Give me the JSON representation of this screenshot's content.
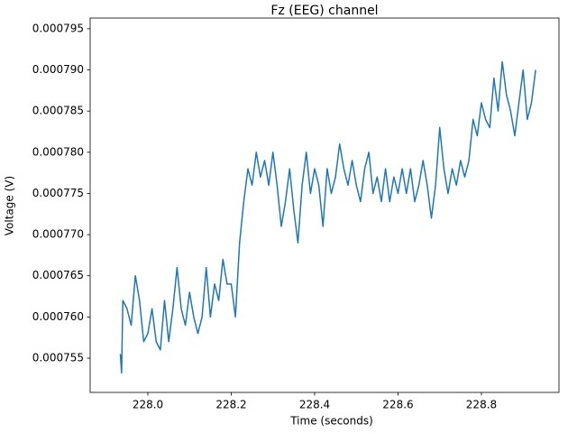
{
  "chart_data": {
    "type": "line",
    "title": "Fz (EEG) channel",
    "x_label": "Time (seconds)",
    "y_label": "Voltage (V)",
    "x": [
      227.934,
      227.937,
      227.94,
      227.95,
      227.96,
      227.97,
      227.98,
      227.99,
      228.0,
      228.01,
      228.02,
      228.03,
      228.04,
      228.05,
      228.06,
      228.07,
      228.08,
      228.09,
      228.1,
      228.11,
      228.12,
      228.13,
      228.14,
      228.15,
      228.16,
      228.17,
      228.18,
      228.19,
      228.2,
      228.21,
      228.22,
      228.23,
      228.24,
      228.25,
      228.26,
      228.27,
      228.28,
      228.29,
      228.3,
      228.31,
      228.32,
      228.33,
      228.34,
      228.35,
      228.36,
      228.37,
      228.38,
      228.39,
      228.4,
      228.41,
      228.42,
      228.43,
      228.44,
      228.45,
      228.46,
      228.47,
      228.48,
      228.49,
      228.5,
      228.51,
      228.52,
      228.53,
      228.54,
      228.55,
      228.56,
      228.57,
      228.58,
      228.59,
      228.6,
      228.61,
      228.62,
      228.63,
      228.64,
      228.65,
      228.66,
      228.67,
      228.68,
      228.69,
      228.7,
      228.71,
      228.72,
      228.73,
      228.74,
      228.75,
      228.76,
      228.77,
      228.78,
      228.79,
      228.8,
      228.81,
      228.82,
      228.83,
      228.84,
      228.85,
      228.86,
      228.87,
      228.88,
      228.89,
      228.9,
      228.91,
      228.92,
      228.93
    ],
    "series": [
      {
        "color": "#1f77b4",
        "values": [
          0.0007555,
          0.0007532,
          0.000762,
          0.000761,
          0.000759,
          0.000765,
          0.000762,
          0.000757,
          0.000758,
          0.000761,
          0.000757,
          0.000756,
          0.000762,
          0.000757,
          0.000761,
          0.000766,
          0.000761,
          0.000759,
          0.000763,
          0.00076,
          0.000758,
          0.00076,
          0.000766,
          0.00076,
          0.000764,
          0.000762,
          0.000767,
          0.000764,
          0.000764,
          0.00076,
          0.000769,
          0.000774,
          0.000778,
          0.000776,
          0.00078,
          0.000777,
          0.000779,
          0.000776,
          0.00078,
          0.000776,
          0.000771,
          0.000774,
          0.000778,
          0.000773,
          0.000769,
          0.000776,
          0.00078,
          0.000775,
          0.000778,
          0.000776,
          0.000771,
          0.000778,
          0.000775,
          0.000777,
          0.000781,
          0.000778,
          0.000776,
          0.000779,
          0.000776,
          0.000774,
          0.000778,
          0.00078,
          0.000775,
          0.000777,
          0.000774,
          0.000778,
          0.000774,
          0.000777,
          0.000775,
          0.000778,
          0.000775,
          0.000778,
          0.000774,
          0.000776,
          0.000779,
          0.000776,
          0.000772,
          0.000776,
          0.000783,
          0.000778,
          0.000775,
          0.000778,
          0.000776,
          0.000779,
          0.000777,
          0.000779,
          0.000784,
          0.000782,
          0.000786,
          0.000784,
          0.000783,
          0.000789,
          0.000785,
          0.000791,
          0.000787,
          0.000785,
          0.000782,
          0.000786,
          0.00079,
          0.000784,
          0.000786,
          0.00079
        ]
      }
    ],
    "xlim": [
      227.8616,
      228.986
    ],
    "ylim": [
      0.00075084,
      0.0007963
    ],
    "xticks": [
      {
        "value": 228,
        "label": "228.0"
      },
      228.2,
      228.4,
      228.6,
      228.8
    ],
    "yticks": [
      0.000755,
      {
        "value": 0.00076,
        "label": "0.000760"
      },
      0.000765,
      {
        "value": 0.00077,
        "label": "0.000770"
      },
      0.000775,
      {
        "value": 0.00078,
        "label": "0.000780"
      },
      0.000785,
      {
        "value": 0.00079,
        "label": "0.000790"
      },
      0.000795
    ]
  }
}
